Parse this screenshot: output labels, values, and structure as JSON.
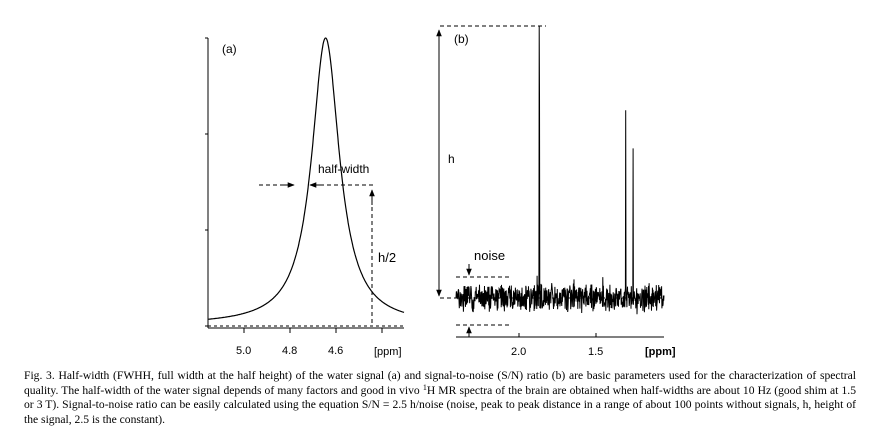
{
  "panel_a": {
    "label": "(a)",
    "half_width_label": "half-width",
    "h2_label": "h/2",
    "x_ticks": [
      "5.0",
      "4.8",
      "4.6"
    ],
    "x_unit": "[ppm]"
  },
  "panel_b": {
    "label": "(b)",
    "h_label": "h",
    "noise_label": "noise",
    "x_ticks": [
      "2.0",
      "1.5"
    ],
    "x_unit": "[ppm]"
  },
  "caption": {
    "part1": "Fig. 3.  Half-width (FWHH, full width at the half height) of the water signal (a) and signal-to-noise (S/N) ratio (b) are basic parameters used for the characterization of spectral quality. The half-width of the water signal depends of many factors and good in vivo ",
    "sup": "1",
    "part2": "H MR spectra of the brain are obtained when half-widths are about 10 Hz (good shim at 1.5 or 3 T). Signal-to-noise ratio can be easily calculated using the equation S/N = 2.5 h/noise (noise, peak to peak distance in a range of about 100 points without signals, h, height of the signal, 2.5 is the constant)."
  },
  "chart_data": [
    {
      "type": "line",
      "panel": "(a)",
      "title": "",
      "xlabel": "[ppm]",
      "ylabel": "",
      "x_ticks": [
        5.0,
        4.8,
        4.6
      ],
      "x_reversed": true,
      "xlim": [
        5.15,
        4.45
      ],
      "peak": {
        "center": 4.73,
        "half_width": 0.06,
        "height_fraction": 1.0,
        "shape": "lorentzian"
      },
      "annotations": [
        "half-width",
        "h/2"
      ]
    },
    {
      "type": "line",
      "panel": "(b)",
      "title": "",
      "xlabel": "[ppm]",
      "ylabel": "",
      "x_ticks": [
        2.0,
        1.5
      ],
      "x_reversed": true,
      "xlim": [
        2.4,
        1.0
      ],
      "peaks": [
        {
          "center": 1.84,
          "relative_height": 1.0
        },
        {
          "center": 1.84,
          "relative_height": 0.75
        },
        {
          "center": 1.26,
          "relative_height": 0.69
        },
        {
          "center": 1.21,
          "relative_height": 0.55
        }
      ],
      "annotations": [
        "h",
        "noise"
      ]
    }
  ]
}
